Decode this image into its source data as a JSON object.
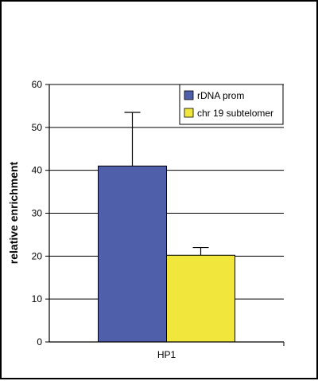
{
  "chart_data": {
    "type": "bar",
    "categories": [
      "HP1"
    ],
    "series": [
      {
        "name": "rDNA prom",
        "values": [
          41
        ],
        "error": [
          12.5
        ],
        "color": "#4f5faa"
      },
      {
        "name": "chr 19 subtelomer",
        "values": [
          20.2
        ],
        "error": [
          1.8
        ],
        "color": "#f0e63c"
      }
    ],
    "xlabel": "",
    "ylabel": "relative enrichment",
    "ylim": [
      0,
      60
    ],
    "yticks": [
      0,
      10,
      20,
      30,
      40,
      50,
      60
    ],
    "grid": true,
    "legend": "top-right"
  }
}
